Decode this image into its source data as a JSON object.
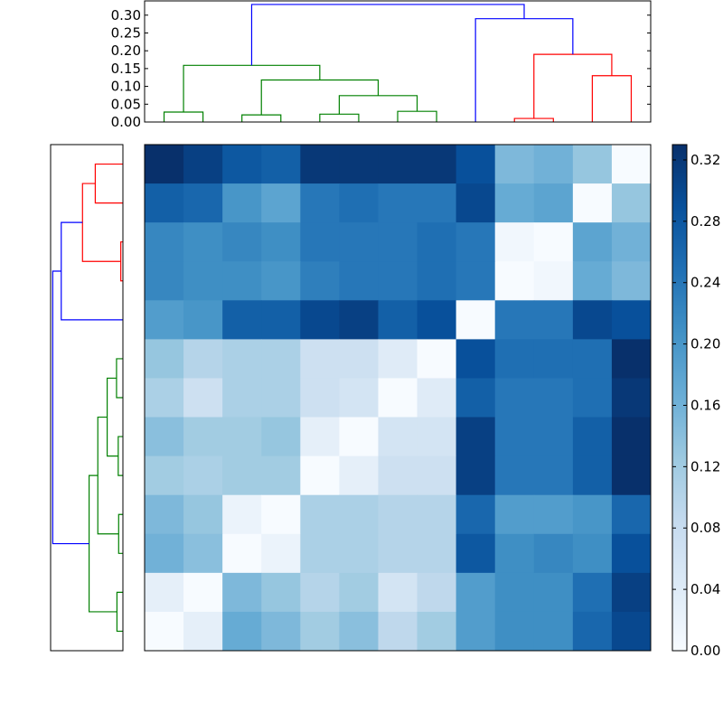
{
  "chart_data": {
    "type": "heatmap",
    "title": "",
    "xlabel": "",
    "ylabel": "",
    "matrix": [
      [
        0.33,
        0.31,
        0.28,
        0.27,
        0.32,
        0.32,
        0.32,
        0.32,
        0.29,
        0.15,
        0.16,
        0.13,
        0.0
      ],
      [
        0.27,
        0.26,
        0.2,
        0.18,
        0.24,
        0.25,
        0.24,
        0.24,
        0.3,
        0.17,
        0.18,
        0.0,
        0.13
      ],
      [
        0.22,
        0.21,
        0.22,
        0.21,
        0.24,
        0.24,
        0.24,
        0.25,
        0.24,
        0.01,
        0.0,
        0.18,
        0.16
      ],
      [
        0.22,
        0.21,
        0.21,
        0.2,
        0.23,
        0.24,
        0.24,
        0.25,
        0.24,
        0.0,
        0.01,
        0.17,
        0.15
      ],
      [
        0.19,
        0.2,
        0.27,
        0.27,
        0.3,
        0.31,
        0.27,
        0.29,
        0.0,
        0.24,
        0.24,
        0.3,
        0.29
      ],
      [
        0.13,
        0.1,
        0.11,
        0.11,
        0.07,
        0.07,
        0.04,
        0.0,
        0.29,
        0.25,
        0.25,
        0.25,
        0.33
      ],
      [
        0.11,
        0.07,
        0.11,
        0.11,
        0.07,
        0.06,
        0.0,
        0.04,
        0.27,
        0.24,
        0.24,
        0.25,
        0.32
      ],
      [
        0.14,
        0.12,
        0.12,
        0.13,
        0.03,
        0.0,
        0.06,
        0.06,
        0.31,
        0.24,
        0.24,
        0.27,
        0.33
      ],
      [
        0.12,
        0.11,
        0.12,
        0.12,
        0.0,
        0.03,
        0.07,
        0.07,
        0.31,
        0.24,
        0.24,
        0.27,
        0.33
      ],
      [
        0.15,
        0.13,
        0.02,
        0.0,
        0.11,
        0.11,
        0.1,
        0.1,
        0.26,
        0.19,
        0.19,
        0.2,
        0.26
      ],
      [
        0.16,
        0.14,
        0.0,
        0.02,
        0.11,
        0.11,
        0.1,
        0.1,
        0.28,
        0.21,
        0.22,
        0.21,
        0.29
      ],
      [
        0.03,
        0.0,
        0.15,
        0.13,
        0.1,
        0.12,
        0.06,
        0.09,
        0.19,
        0.21,
        0.21,
        0.25,
        0.31
      ],
      [
        0.0,
        0.03,
        0.17,
        0.15,
        0.12,
        0.14,
        0.09,
        0.12,
        0.19,
        0.21,
        0.21,
        0.26,
        0.3
      ]
    ],
    "vmin": 0.0,
    "vmax": 0.33,
    "colormap": "Blues",
    "colorbar": {
      "ticks": [
        0.0,
        0.04,
        0.08,
        0.12,
        0.16,
        0.2,
        0.24,
        0.28,
        0.32
      ],
      "tick_labels": [
        "0.00",
        "0.04",
        "0.08",
        "0.12",
        "0.16",
        "0.20",
        "0.24",
        "0.28",
        "0.32"
      ]
    },
    "top_dendrogram": {
      "ylim": [
        0,
        0.34
      ],
      "ticks": [
        0.0,
        0.05,
        0.1,
        0.15,
        0.2,
        0.25,
        0.3
      ],
      "tick_labels": [
        "0.00",
        "0.05",
        "0.10",
        "0.15",
        "0.20",
        "0.25",
        "0.30"
      ],
      "leaf_positions": [
        5,
        15,
        25,
        35,
        45,
        55,
        65,
        75,
        85,
        95,
        105,
        115,
        125
      ],
      "links": [
        {
          "x": [
            5,
            5,
            15,
            15
          ],
          "y": [
            0,
            0.028,
            0.028,
            0
          ],
          "color": "#008000"
        },
        {
          "x": [
            25,
            25,
            35,
            35
          ],
          "y": [
            0,
            0.02,
            0.02,
            0
          ],
          "color": "#008000"
        },
        {
          "x": [
            45,
            45,
            55,
            55
          ],
          "y": [
            0,
            0.022,
            0.022,
            0
          ],
          "color": "#008000"
        },
        {
          "x": [
            65,
            65,
            75,
            75
          ],
          "y": [
            0,
            0.03,
            0.03,
            0
          ],
          "color": "#008000"
        },
        {
          "x": [
            50,
            50,
            70,
            70
          ],
          "y": [
            0.022,
            0.074,
            0.074,
            0.03
          ],
          "color": "#008000"
        },
        {
          "x": [
            30,
            30,
            60,
            60
          ],
          "y": [
            0.02,
            0.118,
            0.118,
            0.074
          ],
          "color": "#008000"
        },
        {
          "x": [
            10,
            10,
            45,
            45
          ],
          "y": [
            0.028,
            0.159,
            0.159,
            0.118
          ],
          "color": "#008000"
        },
        {
          "x": [
            95,
            95,
            105,
            105
          ],
          "y": [
            0,
            0.01,
            0.01,
            0
          ],
          "color": "#ff0000"
        },
        {
          "x": [
            115,
            115,
            125,
            125
          ],
          "y": [
            0,
            0.13,
            0.13,
            0
          ],
          "color": "#ff0000"
        },
        {
          "x": [
            100,
            100,
            120,
            120
          ],
          "y": [
            0.01,
            0.19,
            0.19,
            0.13
          ],
          "color": "#ff0000"
        },
        {
          "x": [
            85,
            85,
            110,
            110
          ],
          "y": [
            0,
            0.29,
            0.29,
            0.19
          ],
          "color": "#0000ff"
        },
        {
          "x": [
            27.5,
            27.5,
            97.5,
            97.5
          ],
          "y": [
            0.159,
            0.33,
            0.33,
            0.29
          ],
          "color": "#0000ff"
        }
      ]
    }
  }
}
